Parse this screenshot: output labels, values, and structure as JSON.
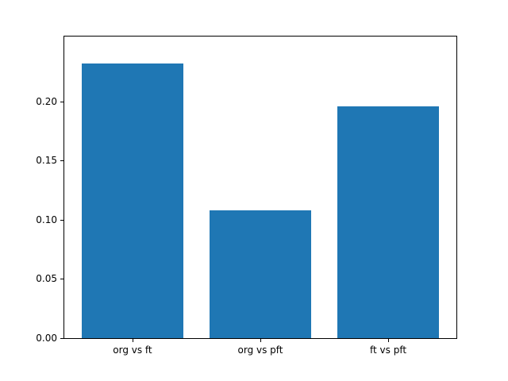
{
  "chart_data": {
    "type": "bar",
    "title": "",
    "xlabel": "",
    "ylabel": "",
    "categories": [
      "org vs ft",
      "org vs pft",
      "ft vs pft"
    ],
    "values": [
      0.232,
      0.108,
      0.196
    ],
    "yticks": [
      "0.00",
      "0.05",
      "0.10",
      "0.15",
      "0.20"
    ],
    "ylim": [
      0,
      0.255
    ],
    "grid": false,
    "legend": "none",
    "bar_color": "#1f77b4",
    "background_color": "#ffffff",
    "frame_color": "#000000"
  }
}
